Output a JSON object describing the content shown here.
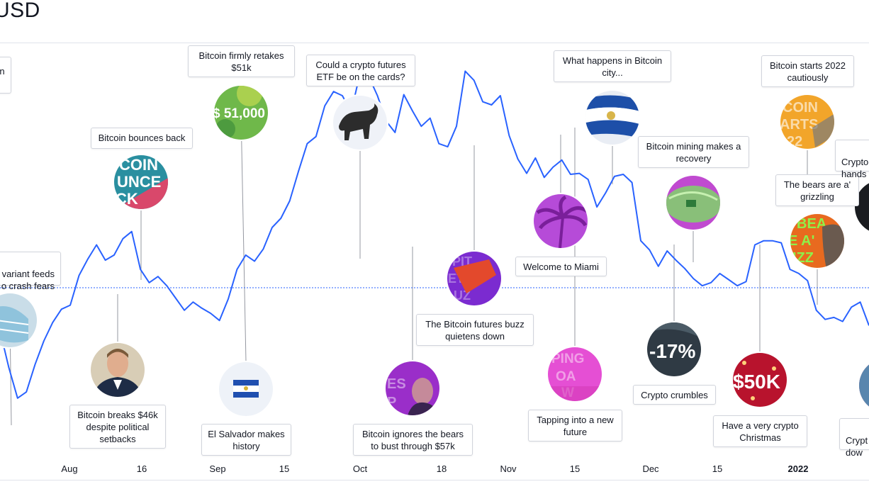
{
  "title": "USD",
  "colors": {
    "line": "#2962ff",
    "stem": "#9598a1",
    "dotted": "#2962ff"
  },
  "chart_data": {
    "type": "line",
    "x_ticks": [
      "Aug",
      "16",
      "Sep",
      "15",
      "Oct",
      "18",
      "Nov",
      "15",
      "Dec",
      "15",
      "2022"
    ],
    "ylim": [
      27000,
      70000
    ],
    "reference_value": 46000,
    "series": [
      {
        "values": [
          41800,
          38200,
          35200,
          35800,
          38500,
          40800,
          42600,
          43900,
          44300,
          47200,
          48800,
          50200,
          48700,
          49200,
          50800,
          51500,
          47800,
          46500,
          47100,
          46200,
          45000,
          43800,
          44600,
          44000,
          43500,
          42800,
          44900,
          47800,
          49200,
          48600,
          49800,
          51900,
          52800,
          54500,
          57400,
          60100,
          60800,
          63800,
          65200,
          64800,
          63200,
          66900,
          66700,
          64800,
          62300,
          61200,
          64900,
          63300,
          61800,
          62600,
          60100,
          59800,
          61800,
          67200,
          66300,
          64200,
          63900,
          64800,
          60900,
          58600,
          57200,
          58700,
          56800,
          57800,
          58500,
          57100,
          57200,
          56600,
          53900,
          55300,
          56900,
          57100,
          56300,
          50600,
          49700,
          48100,
          49600,
          48700,
          47900,
          46900,
          46200,
          46500,
          47400,
          46800,
          46200,
          46600,
          50200,
          50600,
          50600,
          50400,
          47800,
          47400,
          46700,
          43800,
          42900,
          43100,
          42700,
          44100,
          44600,
          42300
        ]
      }
    ]
  },
  "callouts": [
    {
      "text": "n"
    },
    {
      "text": "variant feeds\no crash fears"
    },
    {
      "text": "Bitcoin breaks $46k despite political setbacks"
    },
    {
      "text": "Bitcoin bounces back"
    },
    {
      "text": "Bitcoin firmly retakes $51k"
    },
    {
      "text": "El Salvador makes history"
    },
    {
      "text": "Could a crypto futures ETF be on the cards?"
    },
    {
      "text": "Bitcoin ignores the bears to bust through $57k"
    },
    {
      "text": "The Bitcoin futures buzz quietens down"
    },
    {
      "text": "What happens in Bitcoin city..."
    },
    {
      "text": "Welcome to Miami"
    },
    {
      "text": "Tapping into a new future"
    },
    {
      "text": "Bitcoin mining makes a recovery"
    },
    {
      "text": "Crypto crumbles"
    },
    {
      "text": "Bitcoin starts 2022 cautiously"
    },
    {
      "text": "The bears are a' grizzling"
    },
    {
      "text": "Have a very crypto Christmas"
    },
    {
      "text": "Crypto\nhands"
    },
    {
      "text": "Crypt\ndow"
    }
  ],
  "image_texts": {
    "bounce": [
      "COIN",
      "UNCE",
      "CK"
    ],
    "retakes": "$ 51,000",
    "crumbles": "-17%",
    "christmas": "$50K",
    "tapping": [
      "PING",
      "OA",
      "W"
    ],
    "ignores": [
      "ES",
      "P"
    ],
    "futures": [
      "PIT",
      "ETS",
      "UZ"
    ],
    "starts": [
      "COIN",
      "ARTS",
      "22"
    ],
    "bears": [
      "BEA",
      "E A'",
      "IZZ"
    ]
  }
}
